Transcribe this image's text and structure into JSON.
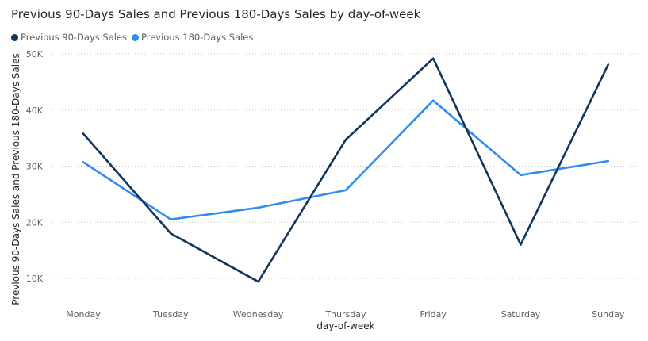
{
  "chart_data": {
    "type": "line",
    "title": "Previous 90-Days Sales and Previous 180-Days Sales by day-of-week",
    "xlabel": "day-of-week",
    "ylabel": "Previous 90-Days Sales and Previous 180-Days Sales",
    "categories": [
      "Monday",
      "Tuesday",
      "Wednesday",
      "Thursday",
      "Friday",
      "Saturday",
      "Sunday"
    ],
    "y_ticks": [
      "10K",
      "20K",
      "30K",
      "40K",
      "50K"
    ],
    "ylim": [
      5000,
      50000
    ],
    "grid": true,
    "legend_position": "top-left",
    "series": [
      {
        "name": "Previous 90-Days Sales",
        "color": "#12355b",
        "values": [
          35800,
          18000,
          9400,
          34700,
          49200,
          16000,
          48100
        ]
      },
      {
        "name": "Previous 180-Days Sales",
        "color": "#2f8cf0",
        "values": [
          30700,
          20500,
          22600,
          25700,
          41700,
          28400,
          30900
        ]
      }
    ]
  }
}
